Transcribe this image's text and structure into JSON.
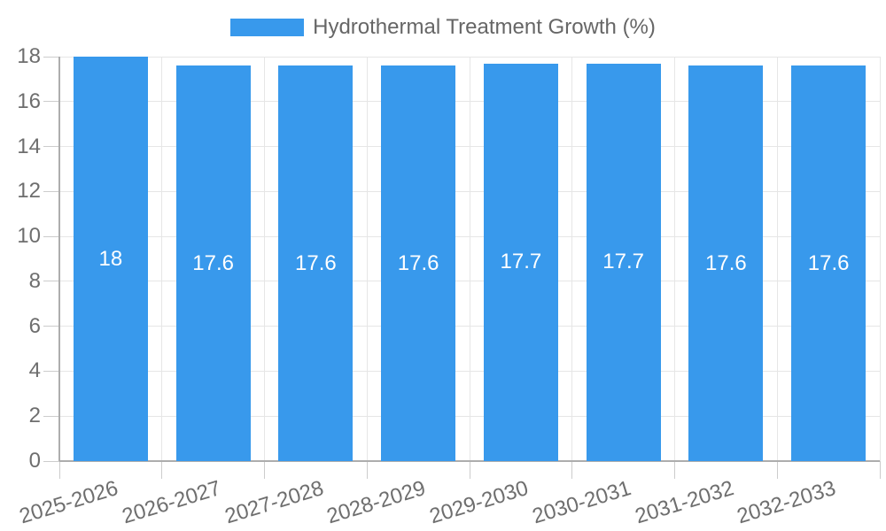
{
  "chart_data": {
    "type": "bar",
    "title": "",
    "legend": {
      "label": "Hydrothermal Treatment Growth (%)",
      "position": "top"
    },
    "categories": [
      "2025-2026",
      "2026-2027",
      "2027-2028",
      "2028-2029",
      "2029-2030",
      "2030-2031",
      "2031-2032",
      "2032-2033"
    ],
    "values": [
      18,
      17.6,
      17.6,
      17.6,
      17.7,
      17.7,
      17.6,
      17.6
    ],
    "value_labels": [
      "18",
      "17.6",
      "17.6",
      "17.6",
      "17.7",
      "17.7",
      "17.6",
      "17.6"
    ],
    "xlabel": "",
    "ylabel": "",
    "ylim": [
      0,
      18
    ],
    "ytick_step": 2,
    "yticks": [
      0,
      2,
      4,
      6,
      8,
      10,
      12,
      14,
      16,
      18
    ],
    "grid": true,
    "x_label_rotation_deg": -17,
    "colors": {
      "bar": "#3899ec",
      "bar_label": "#ffffff",
      "axis_text": "#6e6e6e",
      "legend_text": "#666666",
      "gridline": "#e6e6e6",
      "tick": "#cccccc",
      "axis_line": "#adadad",
      "background": "#ffffff"
    }
  }
}
